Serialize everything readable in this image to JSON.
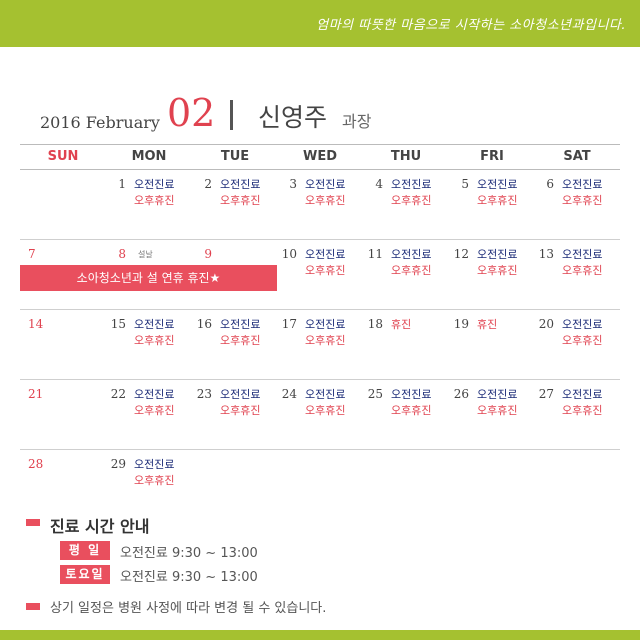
{
  "slogan": "엄마의 따뜻한 마음으로 시작하는 소아청소년과입니다.",
  "header": {
    "year_month": "2016 February",
    "month_num": "02",
    "doctor": "신영주",
    "title": "과장"
  },
  "weekdays": [
    "SUN",
    "MON",
    "TUE",
    "WED",
    "THU",
    "FRI",
    "SAT"
  ],
  "labels": {
    "am": "오전진료",
    "pm": "오후휴진",
    "holiday": "휴진",
    "seollal": "설날"
  },
  "banner": "소아청소년과 설 연휴 휴진★",
  "days": {
    "d1": "1",
    "d2": "2",
    "d3": "3",
    "d4": "4",
    "d5": "5",
    "d6": "6",
    "d7": "7",
    "d8": "8",
    "d9": "9",
    "d10": "10",
    "d11": "11",
    "d12": "12",
    "d13": "13",
    "d14": "14",
    "d15": "15",
    "d16": "16",
    "d17": "17",
    "d18": "18",
    "d19": "19",
    "d20": "20",
    "d21": "21",
    "d22": "22",
    "d23": "23",
    "d24": "24",
    "d25": "25",
    "d26": "26",
    "d27": "27",
    "d28": "28",
    "d29": "29"
  },
  "info": {
    "heading": "진료 시간 안내",
    "weekday_tag": "평 일",
    "weekday_hours": "오전진료 9:30 ~ 13:00",
    "saturday_tag": "토요일",
    "saturday_hours": "오전진료 9:30 ~ 13:00",
    "notice": "상기 일정은 병원 사정에 따라 변경 될 수 있습니다."
  },
  "colors": {
    "green": "#a5c130",
    "red": "#e94f5e",
    "navy": "#1a2a77"
  }
}
